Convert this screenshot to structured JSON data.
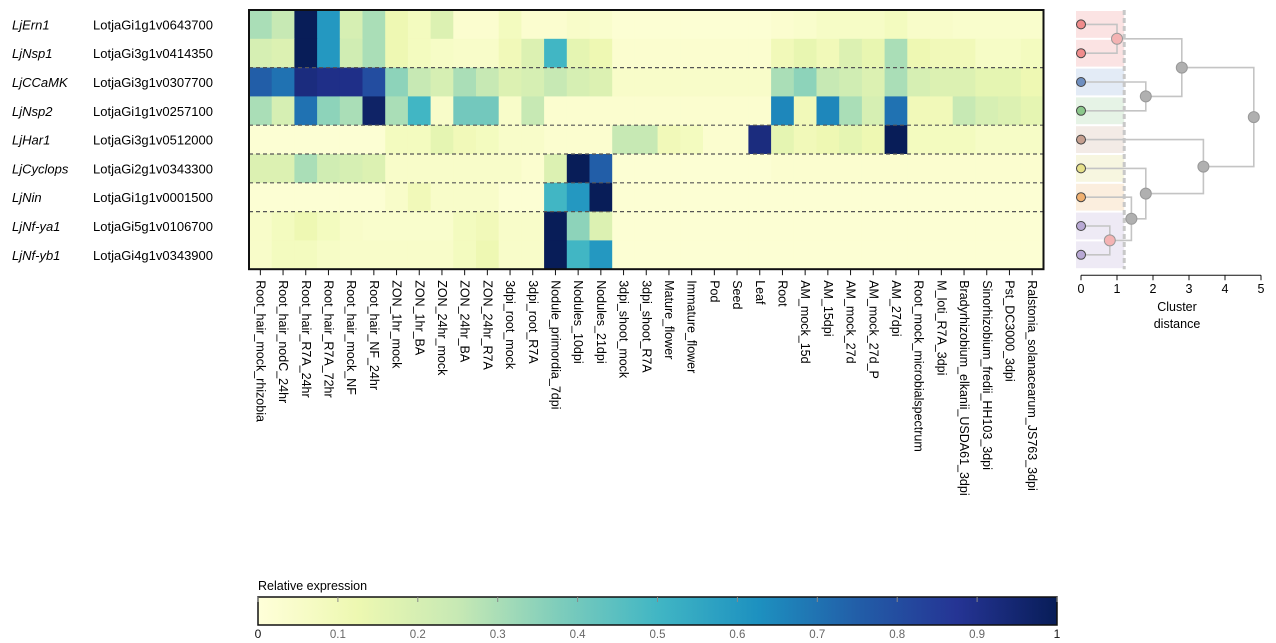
{
  "chart_data": {
    "type": "heatmap",
    "rows": [
      {
        "gene": "LjErn1",
        "id": "LotjaGi1g1v0643700",
        "cluster_color": "#f08c8c",
        "band_color": "#fbe3e3"
      },
      {
        "gene": "LjNsp1",
        "id": "LotjaGi3g1v0414350",
        "cluster_color": "#f08c8c",
        "band_color": "#fbe3e3"
      },
      {
        "gene": "LjCCaMK",
        "id": "LotjaGi3g1v0307700",
        "cluster_color": "#6f8fc0",
        "band_color": "#e3ebf6"
      },
      {
        "gene": "LjNsp2",
        "id": "LotjaGi1g1v0257100",
        "cluster_color": "#8cc88c",
        "band_color": "#e6f3e6"
      },
      {
        "gene": "LjHar1",
        "id": "LotjaGi3g1v0512000",
        "cluster_color": "#c6a090",
        "band_color": "#f3ebe6"
      },
      {
        "gene": "LjCyclops",
        "id": "LotjaGi2g1v0343300",
        "cluster_color": "#e6e08a",
        "band_color": "#f7f6e0"
      },
      {
        "gene": "LjNin",
        "id": "LotjaGi1g1v0001500",
        "cluster_color": "#f0b070",
        "band_color": "#fbeede"
      },
      {
        "gene": "LjNf-ya1",
        "id": "LotjaGi5g1v0106700",
        "cluster_color": "#b8a8d4",
        "band_color": "#eeeaf5"
      },
      {
        "gene": "LjNf-yb1",
        "id": "LotjaGi4g1v0343900",
        "cluster_color": "#b8a8d4",
        "band_color": "#eeeaf5"
      }
    ],
    "columns": [
      "Root_hair_mock_rhizobia",
      "Root_hair_nodC_24hr",
      "Root_hair_R7A_24hr",
      "Root_hair_R7A_72hr",
      "Root_hair_mock_NF",
      "Root_hair_NF_24hr",
      "ZON_1hr_mock",
      "ZON_1hr_BA",
      "ZON_24hr_mock",
      "ZON_24hr_BA",
      "ZON_24hr_R7A",
      "3dpi_root_mock",
      "3dpi_root_R7A",
      "Nodule_primordia_7dpi",
      "Nodules_10dpi",
      "Nodules_21dpi",
      "3dpi_shoot_mock",
      "3dpi_shoot_R7A",
      "Mature_flower",
      "Immature_flower",
      "Pod",
      "Seed",
      "Leaf",
      "Root",
      "AM_mock_15d",
      "AM_15dpi",
      "AM_mock_27d",
      "AM_mock_27d_P",
      "AM_27dpi",
      "Root_mock_microbialspectrum",
      "M_loti_R7A_3dpi",
      "Bradyrhizobium_elkanii_USDA61_3dpi",
      "Sinorhizobium_fredii_HH103_3dpi",
      "Pst_DC3000_3dpi",
      "Ralstonia_solanacearum_JS763_3dpi"
    ],
    "values": [
      [
        0.3,
        0.25,
        1.0,
        0.6,
        0.2,
        0.3,
        0.12,
        0.08,
        0.18,
        0.03,
        0.03,
        0.08,
        0.03,
        0.03,
        0.05,
        0.04,
        0.02,
        0.02,
        0.02,
        0.02,
        0.02,
        0.02,
        0.02,
        0.03,
        0.04,
        0.06,
        0.06,
        0.06,
        0.08,
        0.05,
        0.05,
        0.04,
        0.04,
        0.04,
        0.04
      ],
      [
        0.2,
        0.18,
        1.0,
        0.6,
        0.22,
        0.3,
        0.12,
        0.08,
        0.06,
        0.05,
        0.05,
        0.1,
        0.18,
        0.5,
        0.15,
        0.12,
        0.03,
        0.03,
        0.03,
        0.03,
        0.03,
        0.03,
        0.03,
        0.1,
        0.14,
        0.1,
        0.18,
        0.14,
        0.3,
        0.12,
        0.1,
        0.1,
        0.06,
        0.06,
        0.08
      ],
      [
        0.75,
        0.7,
        0.92,
        0.9,
        0.9,
        0.8,
        0.35,
        0.25,
        0.2,
        0.3,
        0.25,
        0.18,
        0.2,
        0.25,
        0.2,
        0.18,
        0.05,
        0.05,
        0.05,
        0.05,
        0.05,
        0.05,
        0.05,
        0.3,
        0.35,
        0.25,
        0.22,
        0.18,
        0.3,
        0.2,
        0.18,
        0.18,
        0.15,
        0.15,
        0.12
      ],
      [
        0.3,
        0.2,
        0.7,
        0.35,
        0.3,
        0.97,
        0.3,
        0.5,
        0.05,
        0.4,
        0.4,
        0.05,
        0.25,
        0.03,
        0.03,
        0.03,
        0.03,
        0.03,
        0.03,
        0.03,
        0.03,
        0.03,
        0.03,
        0.65,
        0.1,
        0.65,
        0.3,
        0.2,
        0.7,
        0.1,
        0.1,
        0.25,
        0.2,
        0.18,
        0.15
      ],
      [
        0.02,
        0.02,
        0.02,
        0.02,
        0.02,
        0.02,
        0.08,
        0.08,
        0.15,
        0.1,
        0.08,
        0.05,
        0.05,
        0.03,
        0.03,
        0.03,
        0.25,
        0.25,
        0.1,
        0.08,
        0.03,
        0.03,
        0.92,
        0.15,
        0.1,
        0.12,
        0.15,
        0.12,
        1.0,
        0.08,
        0.08,
        0.08,
        0.06,
        0.06,
        0.06
      ],
      [
        0.18,
        0.18,
        0.3,
        0.22,
        0.2,
        0.18,
        0.05,
        0.05,
        0.05,
        0.05,
        0.05,
        0.05,
        0.03,
        0.18,
        1.0,
        0.75,
        0.02,
        0.02,
        0.02,
        0.02,
        0.02,
        0.02,
        0.02,
        0.03,
        0.03,
        0.03,
        0.03,
        0.03,
        0.03,
        0.03,
        0.03,
        0.03,
        0.03,
        0.03,
        0.03
      ],
      [
        0.02,
        0.02,
        0.02,
        0.02,
        0.02,
        0.02,
        0.05,
        0.1,
        0.05,
        0.05,
        0.05,
        0.02,
        0.02,
        0.5,
        0.6,
        1.0,
        0.02,
        0.02,
        0.02,
        0.02,
        0.02,
        0.02,
        0.02,
        0.02,
        0.02,
        0.02,
        0.02,
        0.02,
        0.02,
        0.02,
        0.02,
        0.02,
        0.02,
        0.02,
        0.02
      ],
      [
        0.05,
        0.08,
        0.12,
        0.08,
        0.05,
        0.04,
        0.04,
        0.04,
        0.04,
        0.08,
        0.1,
        0.05,
        0.05,
        1.0,
        0.35,
        0.18,
        0.02,
        0.02,
        0.02,
        0.02,
        0.02,
        0.02,
        0.02,
        0.02,
        0.02,
        0.02,
        0.02,
        0.02,
        0.02,
        0.02,
        0.02,
        0.02,
        0.02,
        0.02,
        0.02
      ],
      [
        0.05,
        0.08,
        0.08,
        0.06,
        0.05,
        0.05,
        0.05,
        0.05,
        0.05,
        0.08,
        0.12,
        0.05,
        0.05,
        1.0,
        0.5,
        0.6,
        0.02,
        0.02,
        0.02,
        0.02,
        0.02,
        0.02,
        0.02,
        0.02,
        0.02,
        0.02,
        0.02,
        0.02,
        0.02,
        0.02,
        0.02,
        0.02,
        0.02,
        0.02,
        0.02
      ]
    ],
    "cluster_breaks_after_rows": [
      1,
      3,
      4,
      5,
      6
    ],
    "colorbar": {
      "title": "Relative expression",
      "min": 0,
      "max": 1,
      "ticks": [
        "0",
        "0.1",
        "0.2",
        "0.3",
        "0.4",
        "0.5",
        "0.6",
        "0.7",
        "0.8",
        "0.9",
        "1"
      ],
      "colors": [
        "#ffffd9",
        "#edf8b1",
        "#c7e9b4",
        "#7fcdbb",
        "#41b6c4",
        "#1d91c0",
        "#225ea8",
        "#253494",
        "#081d58"
      ]
    },
    "dendrogram": {
      "axis_label": "Cluster distance",
      "ticks": [
        "0",
        "1",
        "2",
        "3",
        "4",
        "5"
      ],
      "xlim": [
        0,
        5
      ],
      "cut_distance": 1.2,
      "merges": [
        {
          "a": 0,
          "b": 1,
          "height": 1.0
        },
        {
          "a": 2,
          "b": 3,
          "height": 1.8
        },
        {
          "a": 9,
          "b": 10,
          "height": 2.8
        },
        {
          "a": 7,
          "b": 8,
          "height": 0.8
        },
        {
          "a": 6,
          "b": 12,
          "height": 1.4
        },
        {
          "a": 5,
          "b": 13,
          "height": 1.8
        },
        {
          "a": 4,
          "b": 14,
          "height": 3.4
        },
        {
          "a": 11,
          "b": 15,
          "height": 4.8
        }
      ]
    }
  }
}
